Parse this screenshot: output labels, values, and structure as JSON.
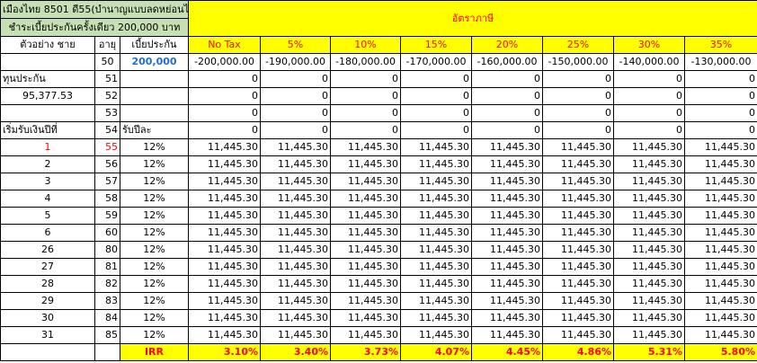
{
  "title_line1": "เมืองไทย 8501 ดี55(บำนาญแบบลดหย่อนได้)",
  "title_line2": "ชำระเบี้ยประกันครั้งเดียว 200,000 บาท",
  "rate_header": "อัตราภาษี",
  "col_labels": {
    "example": "ตัวอย่าง ชาย",
    "age": "อายุ",
    "premium": "เบี้ยประกัน"
  },
  "tax_rates": [
    "No Tax",
    "5%",
    "10%",
    "15%",
    "20%",
    "25%",
    "30%",
    "35%"
  ],
  "first_row": {
    "age": "50",
    "premium": "200,000",
    "values": [
      "-200,000.00",
      "-190,000.00",
      "-180,000.00",
      "-170,000.00",
      "-160,000.00",
      "-150,000.00",
      "-140,000.00",
      "-130,000.00"
    ]
  },
  "sum_insured_label": "ทุนประกัน",
  "sum_insured_value": "95,377.53",
  "zero_rows": [
    {
      "label": "ทุนประกัน",
      "age": "51",
      "mid": ""
    },
    {
      "label": "95,377.53",
      "age": "52",
      "mid": ""
    },
    {
      "label": "",
      "age": "53",
      "mid": ""
    },
    {
      "label": "เริ่มรับเงินปีที่",
      "age": "54",
      "mid": "รับปีละ"
    }
  ],
  "zero_value": "0",
  "payout_value": "11,445.30",
  "payout_rows": [
    {
      "year": "1",
      "age": "55",
      "pct": "12%",
      "highlight": true
    },
    {
      "year": "2",
      "age": "56",
      "pct": "12%"
    },
    {
      "year": "3",
      "age": "57",
      "pct": "12%"
    },
    {
      "year": "4",
      "age": "58",
      "pct": "12%"
    },
    {
      "year": "5",
      "age": "59",
      "pct": "12%"
    },
    {
      "year": "6",
      "age": "60",
      "pct": "12%"
    },
    {
      "year": "26",
      "age": "80",
      "pct": "12%"
    },
    {
      "year": "27",
      "age": "81",
      "pct": "12%"
    },
    {
      "year": "28",
      "age": "82",
      "pct": "12%"
    },
    {
      "year": "29",
      "age": "83",
      "pct": "12%"
    },
    {
      "year": "30",
      "age": "84",
      "pct": "12%"
    },
    {
      "year": "31",
      "age": "85",
      "pct": "12%"
    }
  ],
  "irr_label": "IRR",
  "irr_values": [
    "3.10%",
    "3.40%",
    "3.73%",
    "4.07%",
    "4.45%",
    "4.86%",
    "5.31%",
    "5.80%"
  ],
  "colors": {
    "title_bg": "#c6e0b4",
    "header_bg": "#ffff00",
    "accent_red": "#ff0000",
    "premium_blue": "#1f6fd1"
  }
}
